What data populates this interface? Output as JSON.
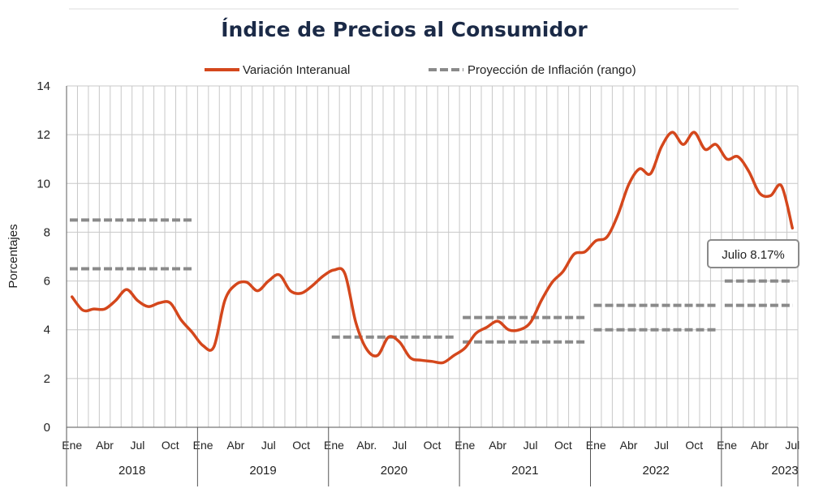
{
  "chart_data": {
    "type": "line",
    "title": "Índice de Precios al Consumidor",
    "ylabel": "Porcentajes",
    "ylim": [
      0,
      14
    ],
    "yticks": [
      0,
      2,
      4,
      6,
      8,
      10,
      12,
      14
    ],
    "grid": true,
    "legend_position": "top",
    "years": [
      "2018",
      "2019",
      "2020",
      "2021",
      "2022",
      "2023"
    ],
    "month_tick_labels": [
      "Ene",
      "Abr",
      "Jul",
      "Oct"
    ],
    "month_tick_labels_2020": [
      "Ene",
      "Abr.",
      "Jul",
      "Oct"
    ],
    "series": [
      {
        "name": "Variación Interanual",
        "color": "#d4471c",
        "style": "solid",
        "start": "2018-01",
        "values": [
          5.35,
          4.8,
          4.85,
          4.85,
          5.2,
          5.65,
          5.2,
          4.95,
          5.1,
          5.1,
          4.4,
          3.9,
          3.35,
          3.3,
          5.2,
          5.85,
          5.95,
          5.6,
          6.0,
          6.25,
          5.6,
          5.5,
          5.8,
          6.2,
          6.45,
          6.3,
          4.3,
          3.2,
          2.95,
          3.7,
          3.5,
          2.85,
          2.75,
          2.7,
          2.65,
          2.95,
          3.25,
          3.85,
          4.1,
          4.35,
          4.0,
          4.0,
          4.3,
          5.2,
          5.95,
          6.4,
          7.1,
          7.2,
          7.65,
          7.8,
          8.7,
          9.95,
          10.6,
          10.4,
          11.5,
          12.1,
          11.6,
          12.1,
          11.4,
          11.6,
          11.0,
          11.1,
          10.5,
          9.6,
          9.5,
          9.9,
          8.17
        ]
      }
    ],
    "projection": {
      "name": "Proyección de Inflación (rango)",
      "color": "#8a8a8a",
      "style": "dashed",
      "ranges": [
        {
          "year": "2018",
          "low": 6.5,
          "high": 8.5
        },
        {
          "year": "2020",
          "low": 3.7,
          "high": 3.7
        },
        {
          "year": "2021",
          "low": 3.5,
          "high": 4.5
        },
        {
          "year": "2022",
          "low": 4.0,
          "high": 5.0
        },
        {
          "year": "2023",
          "low": 5.0,
          "high": 6.0
        }
      ]
    },
    "callout": {
      "text": "Julio 8.17%",
      "month_index": 66,
      "value": 8.17
    }
  }
}
